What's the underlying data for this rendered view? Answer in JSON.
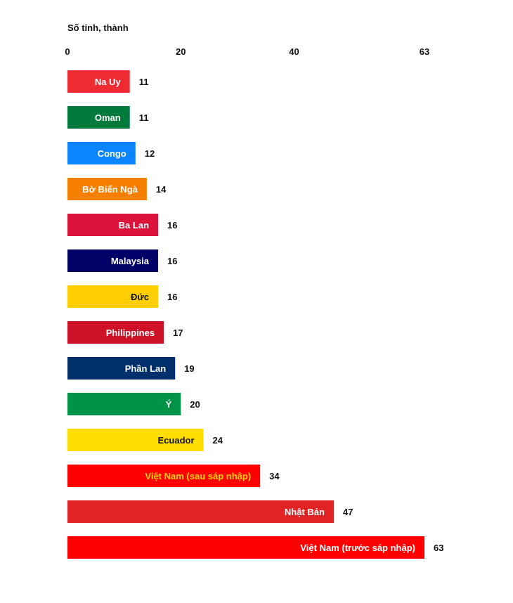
{
  "chart_data": {
    "type": "bar",
    "orientation": "horizontal",
    "axis_title": "Số tỉnh, thành",
    "xlim": [
      0,
      63
    ],
    "ticks": [
      0,
      20,
      40,
      63
    ],
    "grid": false,
    "categories": [
      "Na Uy",
      "Oman",
      "Congo",
      "Bờ Biển Ngà",
      "Ba Lan",
      "Malaysia",
      "Đức",
      "Philippines",
      "Phần Lan",
      "Ý",
      "Ecuador",
      "Việt Nam (sau sáp nhập)",
      "Nhật Bản",
      "Việt Nam (trước sáp nhập)"
    ],
    "values": [
      11,
      11,
      12,
      14,
      16,
      16,
      16,
      17,
      19,
      20,
      24,
      34,
      47,
      63
    ],
    "bar_colors": [
      "#EE2B32",
      "#007A3D",
      "#0A84FF",
      "#F77F00",
      "#DC143C",
      "#010066",
      "#FFCE00",
      "#CE1126",
      "#002F6C",
      "#009246",
      "#FFDD00",
      "#FF0000",
      "#E02424",
      "#FF0000"
    ],
    "label_colors": [
      "#FFFFFF",
      "#FFFFFF",
      "#FFFFFF",
      "#FFFFFF",
      "#FFFFFF",
      "#FFFFFF",
      "#111111",
      "#FFFFFF",
      "#FFFFFF",
      "#FFFFFF",
      "#111111",
      "#FFD400",
      "#FFFFFF",
      "#FFFFFF"
    ]
  }
}
